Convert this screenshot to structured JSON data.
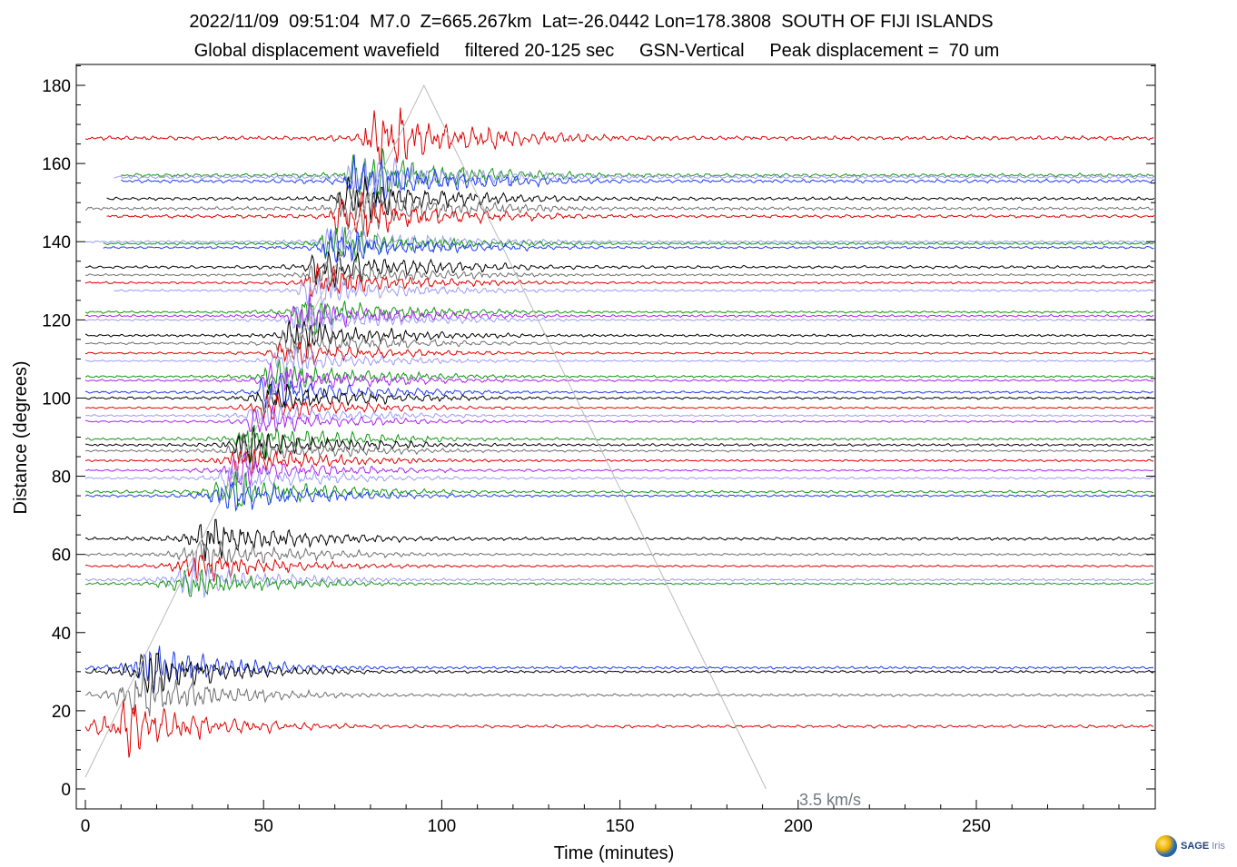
{
  "header": {
    "line1": "2022/11/09  09:51:04  M7.0  Z=665.267km  Lat=-26.0442 Lon=178.3808  SOUTH OF FIJI ISLANDS",
    "line2": "Global displacement wavefield     filtered 20-125 sec     GSN-Vertical     Peak displacement =  70 um"
  },
  "chart_data": {
    "type": "line",
    "title": "2022/11/09  09:51:04  M7.0  Z=665.267km  Lat=-26.0442 Lon=178.3808  SOUTH OF FIJI ISLANDS",
    "subtitle": "Global displacement wavefield     filtered 20-125 sec     GSN-Vertical     Peak displacement =  70 um",
    "xlabel": "Time (minutes)",
    "ylabel": "Distance (degrees)",
    "xlim": [
      -2,
      300
    ],
    "ylim": [
      -5,
      185
    ],
    "xticks": [
      0,
      50,
      100,
      150,
      200,
      250
    ],
    "yticks": [
      0,
      20,
      40,
      60,
      80,
      100,
      120,
      140,
      160,
      180
    ],
    "grid": false,
    "reference_line": {
      "label": "3.5 km/s",
      "points": [
        [
          0,
          3
        ],
        [
          95,
          180
        ],
        [
          191,
          0
        ]
      ],
      "color": "#bbbbbb"
    },
    "colors": {
      "red": "#dd0000",
      "black": "#000000",
      "green": "#149614",
      "blue": "#1e3cf0",
      "lavender": "#9b9bf5",
      "purple": "#aa22ee",
      "gray": "#6e6e6e"
    },
    "traces": [
      {
        "distance": 166.5,
        "color": "red",
        "start": 0,
        "amp": 3.2
      },
      {
        "distance": 157,
        "color": "green",
        "start": 10,
        "amp": 2.6
      },
      {
        "distance": 156.5,
        "color": "lavender",
        "start": 8,
        "amp": 2.4
      },
      {
        "distance": 155.5,
        "color": "blue",
        "start": 10,
        "amp": 2.6
      },
      {
        "distance": 151,
        "color": "black",
        "start": 6,
        "amp": 2.4
      },
      {
        "distance": 148.5,
        "color": "gray",
        "start": 0,
        "amp": 2.4
      },
      {
        "distance": 146.5,
        "color": "red",
        "start": 6,
        "amp": 2.4
      },
      {
        "distance": 140,
        "color": "lavender",
        "start": 0,
        "amp": 1.8
      },
      {
        "distance": 139.5,
        "color": "green",
        "start": 5,
        "amp": 1.8
      },
      {
        "distance": 138.5,
        "color": "blue",
        "start": 5,
        "amp": 1.8
      },
      {
        "distance": 133.5,
        "color": "black",
        "start": 0,
        "amp": 2.2
      },
      {
        "distance": 131.5,
        "color": "gray",
        "start": 0,
        "amp": 1.6
      },
      {
        "distance": 129.5,
        "color": "red",
        "start": 0,
        "amp": 1.6
      },
      {
        "distance": 127.5,
        "color": "lavender",
        "start": 8,
        "amp": 1.6
      },
      {
        "distance": 122,
        "color": "green",
        "start": 0,
        "amp": 1.8
      },
      {
        "distance": 121,
        "color": "purple",
        "start": 0,
        "amp": 1.8
      },
      {
        "distance": 120,
        "color": "lavender",
        "start": 0,
        "amp": 1.6
      },
      {
        "distance": 116,
        "color": "black",
        "start": 0,
        "amp": 1.8
      },
      {
        "distance": 114,
        "color": "gray",
        "start": 0,
        "amp": 1.6
      },
      {
        "distance": 111.5,
        "color": "red",
        "start": 0,
        "amp": 1.4
      },
      {
        "distance": 109.5,
        "color": "lavender",
        "start": 0,
        "amp": 1.4
      },
      {
        "distance": 105.5,
        "color": "green",
        "start": 0,
        "amp": 1.6
      },
      {
        "distance": 104.5,
        "color": "purple",
        "start": 0,
        "amp": 1.6
      },
      {
        "distance": 101.5,
        "color": "blue",
        "start": 0,
        "amp": 1.8
      },
      {
        "distance": 100,
        "color": "black",
        "start": 0,
        "amp": 1.8
      },
      {
        "distance": 97.5,
        "color": "red",
        "start": 0,
        "amp": 1.4
      },
      {
        "distance": 95.5,
        "color": "lavender",
        "start": 0,
        "amp": 1.4
      },
      {
        "distance": 94,
        "color": "purple",
        "start": 0,
        "amp": 1.4
      },
      {
        "distance": 89.5,
        "color": "green",
        "start": 0,
        "amp": 1.8
      },
      {
        "distance": 88,
        "color": "black",
        "start": 0,
        "amp": 1.8
      },
      {
        "distance": 86.5,
        "color": "gray",
        "start": 0,
        "amp": 1.6
      },
      {
        "distance": 84,
        "color": "red",
        "start": 0,
        "amp": 1.6
      },
      {
        "distance": 81.5,
        "color": "purple",
        "start": 0,
        "amp": 1.6
      },
      {
        "distance": 79.5,
        "color": "lavender",
        "start": 0,
        "amp": 1.6
      },
      {
        "distance": 76,
        "color": "green",
        "start": 0,
        "amp": 2.0
      },
      {
        "distance": 75,
        "color": "blue",
        "start": 0,
        "amp": 1.8
      },
      {
        "distance": 64,
        "color": "black",
        "start": 0,
        "amp": 2.2
      },
      {
        "distance": 60,
        "color": "gray",
        "start": 0,
        "amp": 1.8
      },
      {
        "distance": 57,
        "color": "red",
        "start": 0,
        "amp": 1.6
      },
      {
        "distance": 53.5,
        "color": "lavender",
        "start": 0,
        "amp": 1.8
      },
      {
        "distance": 52.5,
        "color": "green",
        "start": 0,
        "amp": 1.6
      },
      {
        "distance": 31,
        "color": "blue",
        "start": 0,
        "amp": 2.0
      },
      {
        "distance": 30,
        "color": "black",
        "start": 0,
        "amp": 2.0
      },
      {
        "distance": 24,
        "color": "gray",
        "start": 0,
        "amp": 2.2
      },
      {
        "distance": 16,
        "color": "red",
        "start": 0,
        "amp": 2.4
      }
    ]
  },
  "logo": {
    "name": "SAGE",
    "sub": "Iris"
  }
}
